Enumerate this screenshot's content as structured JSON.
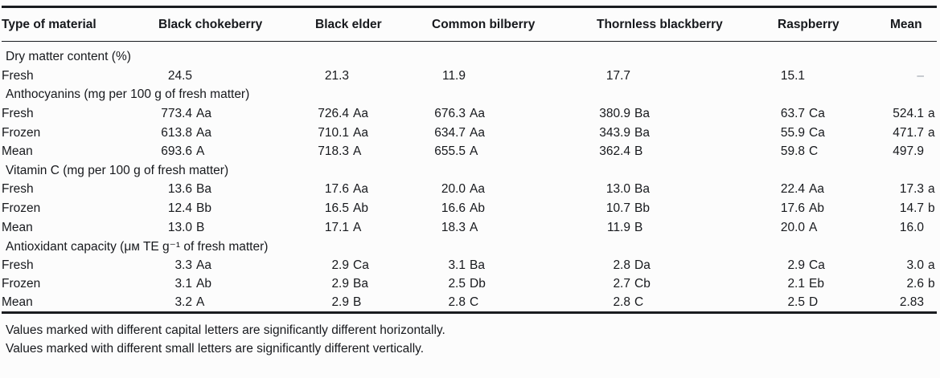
{
  "table": {
    "columns": [
      {
        "label": "Type of material"
      },
      {
        "label": "Black chokeberry"
      },
      {
        "label": "Black elder"
      },
      {
        "label": "Common bilberry"
      },
      {
        "label": "Thornless blackberry"
      },
      {
        "label": "Raspberry"
      },
      {
        "label": "Mean"
      }
    ],
    "sections": [
      {
        "header": "Dry matter content (%)",
        "rows": [
          {
            "label": "Fresh",
            "values": [
              "24.5",
              "21.3",
              "11.9",
              "17.7",
              "15.1",
              "–"
            ]
          }
        ]
      },
      {
        "header": "Anthocyanins (mg per 100 g of fresh matter)",
        "rows": [
          {
            "label": "Fresh",
            "values": [
              "773.4 Aa",
              "726.4 Aa",
              "676.3 Aa",
              "380.9 Ba",
              "63.7 Ca",
              "524.1 a"
            ]
          },
          {
            "label": "Frozen",
            "values": [
              "613.8 Aa",
              "710.1 Aa",
              "634.7 Aa",
              "343.9 Ba",
              "55.9 Ca",
              "471.7 a"
            ]
          },
          {
            "label": "Mean",
            "values": [
              "693.6 A",
              "718.3 A",
              "655.5 A",
              "362.4 B",
              "59.8 C",
              "497.9"
            ]
          }
        ]
      },
      {
        "header": "Vitamin C (mg per 100 g of fresh matter)",
        "rows": [
          {
            "label": "Fresh",
            "values": [
              "13.6 Ba",
              "17.6 Aa",
              "20.0 Aa",
              "13.0 Ba",
              "22.4 Aa",
              "17.3 a"
            ]
          },
          {
            "label": "Frozen",
            "values": [
              "12.4 Bb",
              "16.5 Ab",
              "16.6 Ab",
              "10.7 Bb",
              "17.6 Ab",
              "14.7 b"
            ]
          },
          {
            "label": "Mean",
            "values": [
              "13.0 B",
              "17.1 A",
              "18.3 A",
              "11.9 B",
              "20.0 A",
              "16.0"
            ]
          }
        ]
      },
      {
        "header": "Antioxidant capacity (μᴍ TE g⁻¹ of fresh matter)",
        "rows": [
          {
            "label": "Fresh",
            "values": [
              "3.3 Aa",
              "2.9 Ca",
              "3.1 Ba",
              "2.8 Da",
              "2.9 Ca",
              "3.0 a"
            ]
          },
          {
            "label": "Frozen",
            "values": [
              "3.1 Ab",
              "2.9 Ba",
              "2.5 Db",
              "2.7 Cb",
              "2.1 Eb",
              "2.6 b"
            ]
          },
          {
            "label": "Mean",
            "values": [
              "3.2 A",
              "2.9 B",
              "2.8 C",
              "2.8 C",
              "2.5 D",
              "2.83"
            ]
          }
        ]
      }
    ],
    "footnotes": [
      "Values marked with different capital letters are significantly different horizontally.",
      "Values marked with different small letters are significantly different vertically."
    ]
  },
  "colors": {
    "text": "#17191d",
    "rule": "#1a1c20",
    "missing_dash": "#999fa8"
  }
}
